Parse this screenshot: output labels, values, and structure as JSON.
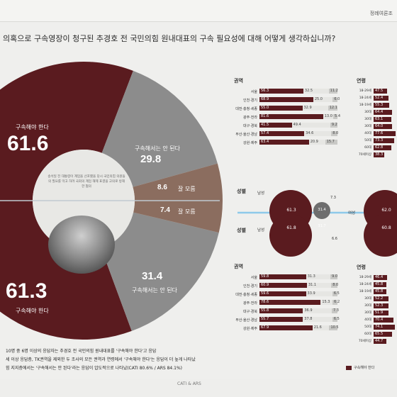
{
  "header": {
    "corner": "정례여론조",
    "question": "의혹으로 구속영장이 청구된 추경호 전 국민의힘 원내대표의 구속 필요성에 대해 어떻게 생각하십니까?"
  },
  "donut": {
    "top": {
      "must_value": "61.6",
      "must_label": "구속해야 한다",
      "not_value": "29.8",
      "not_label": "구속해서는 안 된다",
      "dk_value": "8.6",
      "dk_label": "잘 모름"
    },
    "bottom": {
      "must_value": "61.3",
      "must_label": "구속해야 한다",
      "not_value": "31.4",
      "not_label": "구속해서는 안 된다",
      "dk_value": "7.4",
      "dk_label": "잘 모름"
    },
    "center_text": "송석일 전 대통령이 계엄을 선포했을 당시 국민의힘 의원들의 필요를 막고 하려 국회의 계엄 해제 표결을 고의로 방해한 혐의"
  },
  "chart_data": [
    {
      "type": "pie",
      "title": "",
      "categories": [
        "구속해야 한다",
        "구속해서는 안 된다",
        "잘 모름"
      ],
      "values": [
        61.6,
        29.8,
        8.6
      ]
    },
    {
      "type": "pie",
      "title": "",
      "categories": [
        "구속해야 한다",
        "구속해서는 안 된다",
        "잘 모름"
      ],
      "values": [
        61.3,
        31.4,
        7.4
      ]
    },
    {
      "type": "bar",
      "title": "권역",
      "stacked": true,
      "categories": [
        "서울",
        "인천·경기",
        "대전·충청·세종",
        "광주·전라",
        "대구·경북",
        "부산·울산·경남",
        "강원·제주"
      ],
      "series": [
        {
          "name": "",
          "values": [
            56.3,
            68.9,
            55.0,
            81.6,
            41.5,
            57.4,
            63.4
          ]
        },
        {
          "name": "",
          "values": [
            32.5,
            25.0,
            32.9,
            13.0,
            49.4,
            34.6,
            20.9
          ]
        },
        {
          "name": "",
          "values": [
            11.2,
            6.0,
            12.1,
            5.4,
            9.2,
            8.0,
            15.7
          ]
        }
      ]
    },
    {
      "type": "bar",
      "title": "권역",
      "stacked": true,
      "categories": [
        "서울",
        "인천·경기",
        "대전·충청·세종",
        "광주·전라",
        "대구·경북",
        "부산·울산·경남",
        "강원·제주"
      ],
      "series": [
        {
          "name": "",
          "values": [
            59.8,
            60.9,
            59.6,
            78.6,
            55.8,
            55.7,
            67.9
          ]
        },
        {
          "name": "",
          "values": [
            31.3,
            31.1,
            33.9,
            15.3,
            36.9,
            37.8,
            21.6
          ]
        },
        {
          "name": "",
          "values": [
            9.0,
            8.0,
            6.5,
            6.2,
            7.3,
            6.5,
            10.5
          ]
        }
      ]
    },
    {
      "type": "bar",
      "title": "연령",
      "stacked": true,
      "categories": [
        "18-29세",
        "18-24세",
        "18-19세",
        "30대",
        "30대",
        "30대",
        "40대",
        "50대",
        "60대",
        "70세이상"
      ],
      "series": [
        {
          "name": "",
          "values": [
            47.5,
            52.4,
            55.3,
            64.4,
            63.1,
            64.0,
            77.6,
            73.3,
            62.8,
            38.3
          ]
        }
      ]
    },
    {
      "type": "bar",
      "title": "연령",
      "stacked": true,
      "categories": [
        "18-29세",
        "18-24세",
        "18-19세",
        "30대",
        "30대",
        "30대",
        "40대",
        "50대",
        "60대",
        "70세이상"
      ],
      "series": [
        {
          "name": "",
          "values": [
            46.4,
            45.8,
            45.8,
            52.2,
            52.3,
            51.9,
            70.4,
            74.1,
            65.5,
            44.7
          ]
        }
      ]
    },
    {
      "type": "scatter",
      "title": "성별",
      "categories": [
        "남성",
        "여성"
      ],
      "series": [
        {
          "name": "",
          "values": [
            61.3,
            62.0
          ]
        },
        {
          "name": "",
          "values": [
            61.8,
            60.8
          ]
        }
      ]
    }
  ],
  "gender": {
    "title": "성별",
    "male": "남성",
    "female": "여성",
    "top_male_must": "61.3",
    "top_male_not": "31.4",
    "top_female_must": "62.0",
    "top_dk": "7.3",
    "bottom_male_must": "61.8",
    "bottom_male_not": "31.7",
    "bottom_female_must": "60.8",
    "bottom_dk": "6.6"
  },
  "footnote": {
    "l1": "10명 중 6명 이상의 응답자는 추경호 전 국민의힘 원내대표를 '구속해야 한다'고 응답",
    "l2": "세 이상 응답층, TK권역을 제외한 두 조사의 모든 권역과 연령에서 '구속해야 한다'는 응답이 더 높게 나타났",
    "l3": "힘 지지층에서는 '구속해서는 안 된다'라는 응답이 압도적으로 나타났(CATI 80.6% / ARS 84.1%)"
  },
  "bottom_label": "CATI & ARS",
  "legend_label": "구속해야 한다",
  "colors": {
    "must": "#5a1b1f",
    "not": "#8c8c8c",
    "dk": "#8b6d5f",
    "ring_inner": "#e8e8e5"
  }
}
